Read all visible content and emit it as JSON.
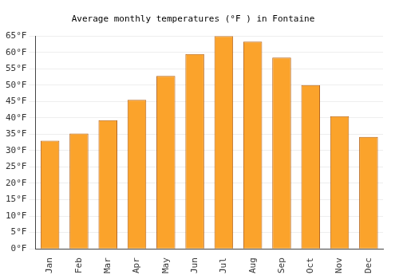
{
  "chart_data": {
    "type": "bar",
    "title": "Average monthly temperatures (°F ) in Fontaine",
    "categories": [
      "Jan",
      "Feb",
      "Mar",
      "Apr",
      "May",
      "Jun",
      "Jul",
      "Aug",
      "Sep",
      "Oct",
      "Nov",
      "Dec"
    ],
    "values": [
      33,
      35.2,
      39.3,
      45.5,
      52.8,
      59.5,
      65,
      63.3,
      58.4,
      50,
      40.5,
      34.2
    ],
    "color": "#fba32b",
    "ylim": [
      0,
      65
    ],
    "yticks": [
      {
        "value": 0,
        "label": "0°F"
      },
      {
        "value": 5,
        "label": "5°F"
      },
      {
        "value": 10,
        "label": "10°F"
      },
      {
        "value": 15,
        "label": "15°F"
      },
      {
        "value": 20,
        "label": "20°F"
      },
      {
        "value": 25,
        "label": "25°F"
      },
      {
        "value": 30,
        "label": "30°F"
      },
      {
        "value": 35,
        "label": "35°F"
      },
      {
        "value": 40,
        "label": "40°F"
      },
      {
        "value": 45,
        "label": "45°F"
      },
      {
        "value": 50,
        "label": "50°F"
      },
      {
        "value": 55,
        "label": "55°F"
      },
      {
        "value": 60,
        "label": "60°F"
      },
      {
        "value": 65,
        "label": "65°F"
      }
    ],
    "grid": true
  }
}
